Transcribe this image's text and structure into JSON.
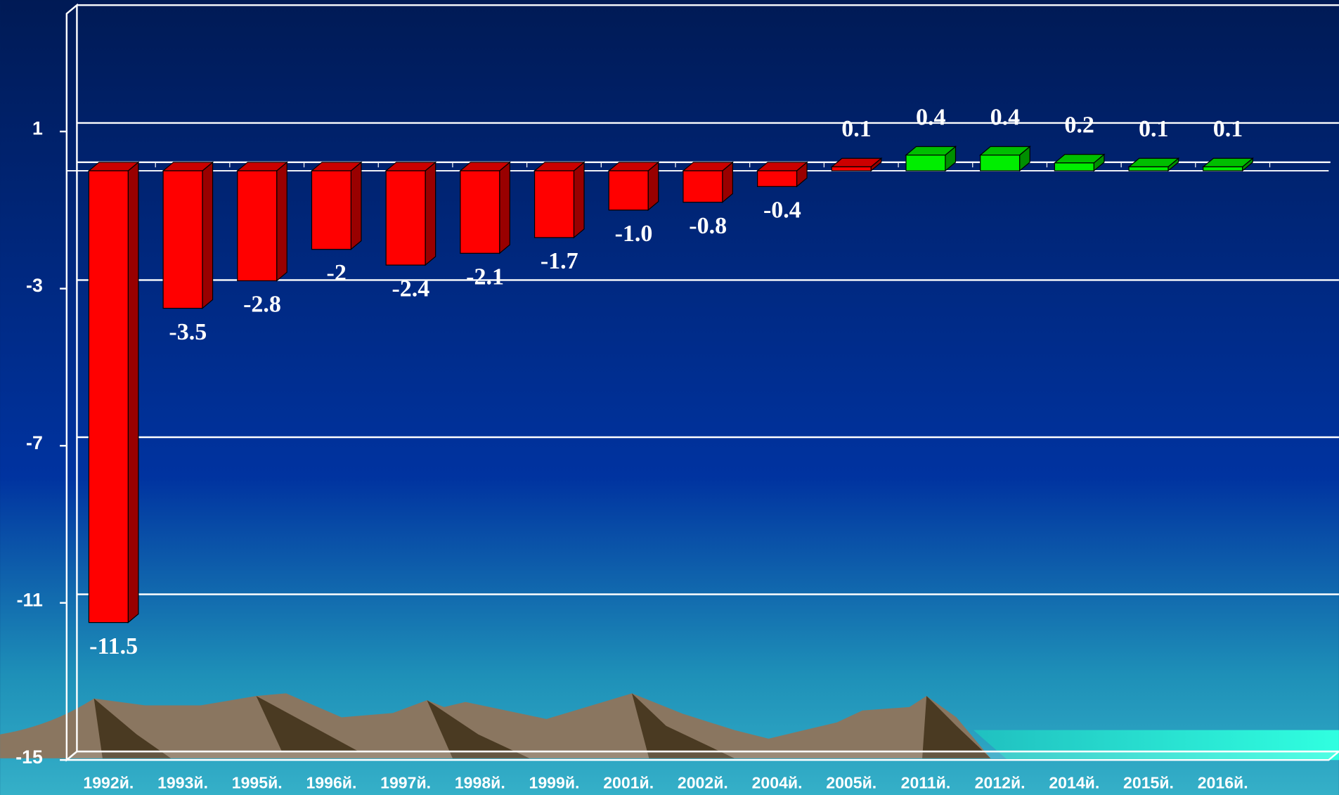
{
  "chart_data": {
    "type": "bar3d",
    "categories": [
      "1992й.",
      "1993й.",
      "1995й.",
      "1996й.",
      "1997й.",
      "1998й.",
      "1999й.",
      "2001й.",
      "2002й.",
      "2004й.",
      "2005й.",
      "2011й.",
      "2012й.",
      "2014й.",
      "2015й.",
      "2016й."
    ],
    "values": [
      -11.5,
      -3.5,
      -2.8,
      -2,
      -2.4,
      -2.1,
      -1.7,
      -1.0,
      -0.8,
      -0.4,
      0.1,
      0.4,
      0.4,
      0.2,
      0.1,
      0.1
    ],
    "value_labels": [
      "-11.5",
      "-3.5",
      "-2.8",
      "-2",
      "-2.4",
      "-2.1",
      "-1.7",
      "-1.0",
      "-0.8",
      "-0.4",
      "0.1",
      "0.4",
      "0.4",
      "0.2",
      "0.1",
      "0.1"
    ],
    "colors": [
      "#ff0000",
      "#ff0000",
      "#ff0000",
      "#ff0000",
      "#ff0000",
      "#ff0000",
      "#ff0000",
      "#ff0000",
      "#ff0000",
      "#ff0000",
      "#ff0000",
      "#00ee00",
      "#00ee00",
      "#00ee00",
      "#00ee00",
      "#00ee00"
    ],
    "ylim": [
      -15,
      4
    ],
    "yticks": [
      1,
      -3,
      -7,
      -11,
      -15
    ],
    "grid": true
  }
}
